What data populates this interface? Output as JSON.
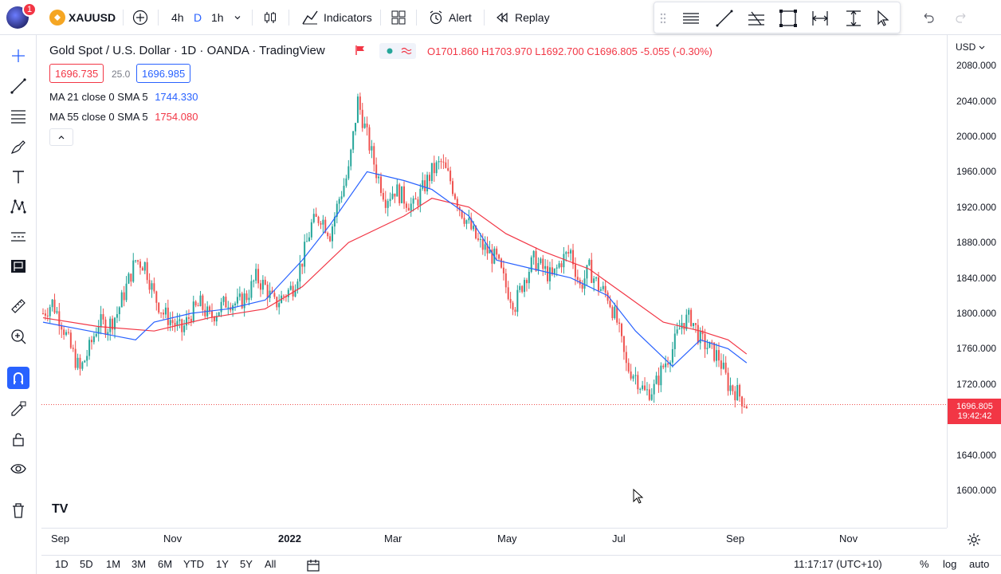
{
  "topbar": {
    "notification_count": "1",
    "symbol": "XAUUSD",
    "intervals": [
      "4h",
      "D",
      "1h"
    ],
    "indicators_label": "Indicators",
    "alert_label": "Alert",
    "replay_label": "Replay"
  },
  "legend": {
    "title": "Gold Spot / U.S. Dollar · 1D · OANDA · TradingView",
    "open": "O1701.860",
    "high": "H1703.970",
    "low": "L1692.700",
    "close": "C1696.805",
    "change": "-5.055 (-0.30%)",
    "bid": "1696.735",
    "spread": "25.0",
    "ask": "1696.985",
    "ma21_label": "MA 21 close 0 SMA 5",
    "ma21_value": "1744.330",
    "ma55_label": "MA 55 close 0 SMA 5",
    "ma55_value": "1754.080"
  },
  "price_axis": {
    "currency": "USD",
    "ticks": [
      "2080.000",
      "2040.000",
      "2000.000",
      "1960.000",
      "1920.000",
      "1880.000",
      "1840.000",
      "1800.000",
      "1760.000",
      "1720.000",
      "1640.000",
      "1600.000"
    ],
    "last_price": "1696.805",
    "countdown": "19:42:42"
  },
  "time_axis": {
    "labels": [
      "Sep",
      "Nov",
      "2022",
      "Mar",
      "May",
      "Jul",
      "Sep",
      "Nov"
    ]
  },
  "bottombar": {
    "ranges": [
      "1D",
      "5D",
      "1M",
      "3M",
      "6M",
      "YTD",
      "1Y",
      "5Y",
      "All"
    ],
    "clock": "11:17:17 (UTC+10)",
    "percent": "%",
    "log": "log",
    "auto": "auto"
  },
  "colors": {
    "up": "#26a69a",
    "down": "#ef5350",
    "ma21": "#2962ff",
    "ma55": "#f23645"
  },
  "chart_data": {
    "type": "line",
    "x": [
      "Sep",
      "Nov",
      "2022",
      "Mar",
      "May",
      "Jul",
      "Sep",
      "Nov"
    ],
    "price_ylim": [
      1600,
      2100
    ],
    "close_path": [
      [
        0,
        1800
      ],
      [
        4,
        1812
      ],
      [
        8,
        1790
      ],
      [
        12,
        1760
      ],
      [
        16,
        1735
      ],
      [
        20,
        1760
      ],
      [
        24,
        1790
      ],
      [
        28,
        1785
      ],
      [
        32,
        1800
      ],
      [
        36,
        1830
      ],
      [
        40,
        1860
      ],
      [
        44,
        1855
      ],
      [
        48,
        1820
      ],
      [
        52,
        1800
      ],
      [
        56,
        1790
      ],
      [
        60,
        1780
      ],
      [
        64,
        1800
      ],
      [
        68,
        1810
      ],
      [
        72,
        1795
      ],
      [
        76,
        1805
      ],
      [
        80,
        1815
      ],
      [
        84,
        1810
      ],
      [
        88,
        1820
      ],
      [
        92,
        1840
      ],
      [
        96,
        1830
      ],
      [
        100,
        1810
      ],
      [
        104,
        1820
      ],
      [
        108,
        1830
      ],
      [
        112,
        1860
      ],
      [
        116,
        1900
      ],
      [
        120,
        1910
      ],
      [
        124,
        1890
      ],
      [
        128,
        1930
      ],
      [
        132,
        1960
      ],
      [
        136,
        2040
      ],
      [
        140,
        2000
      ],
      [
        144,
        1960
      ],
      [
        148,
        1930
      ],
      [
        152,
        1940
      ],
      [
        156,
        1930
      ],
      [
        160,
        1920
      ],
      [
        164,
        1940
      ],
      [
        168,
        1960
      ],
      [
        172,
        1970
      ],
      [
        176,
        1950
      ],
      [
        180,
        1920
      ],
      [
        184,
        1900
      ],
      [
        188,
        1880
      ],
      [
        192,
        1870
      ],
      [
        196,
        1860
      ],
      [
        200,
        1830
      ],
      [
        204,
        1810
      ],
      [
        208,
        1840
      ],
      [
        212,
        1860
      ],
      [
        216,
        1850
      ],
      [
        220,
        1840
      ],
      [
        224,
        1860
      ],
      [
        228,
        1870
      ],
      [
        232,
        1830
      ],
      [
        236,
        1850
      ],
      [
        240,
        1830
      ],
      [
        244,
        1820
      ],
      [
        248,
        1790
      ],
      [
        252,
        1740
      ],
      [
        256,
        1730
      ],
      [
        260,
        1710
      ],
      [
        264,
        1715
      ],
      [
        268,
        1740
      ],
      [
        272,
        1760
      ],
      [
        276,
        1790
      ],
      [
        280,
        1795
      ],
      [
        284,
        1770
      ],
      [
        288,
        1760
      ],
      [
        292,
        1750
      ],
      [
        296,
        1720
      ],
      [
        300,
        1710
      ],
      [
        304,
        1697
      ]
    ],
    "ma21_path": [
      [
        0,
        1790
      ],
      [
        20,
        1780
      ],
      [
        40,
        1770
      ],
      [
        48,
        1790
      ],
      [
        64,
        1800
      ],
      [
        80,
        1805
      ],
      [
        96,
        1815
      ],
      [
        112,
        1860
      ],
      [
        124,
        1900
      ],
      [
        140,
        1960
      ],
      [
        156,
        1950
      ],
      [
        168,
        1940
      ],
      [
        184,
        1910
      ],
      [
        196,
        1860
      ],
      [
        212,
        1850
      ],
      [
        228,
        1840
      ],
      [
        244,
        1820
      ],
      [
        256,
        1780
      ],
      [
        272,
        1740
      ],
      [
        284,
        1770
      ],
      [
        296,
        1760
      ],
      [
        304,
        1744
      ]
    ],
    "ma55_path": [
      [
        0,
        1795
      ],
      [
        24,
        1785
      ],
      [
        48,
        1780
      ],
      [
        72,
        1795
      ],
      [
        96,
        1805
      ],
      [
        112,
        1830
      ],
      [
        132,
        1880
      ],
      [
        156,
        1910
      ],
      [
        168,
        1930
      ],
      [
        184,
        1920
      ],
      [
        200,
        1890
      ],
      [
        216,
        1870
      ],
      [
        236,
        1850
      ],
      [
        252,
        1820
      ],
      [
        268,
        1790
      ],
      [
        284,
        1780
      ],
      [
        296,
        1770
      ],
      [
        304,
        1754
      ]
    ]
  }
}
